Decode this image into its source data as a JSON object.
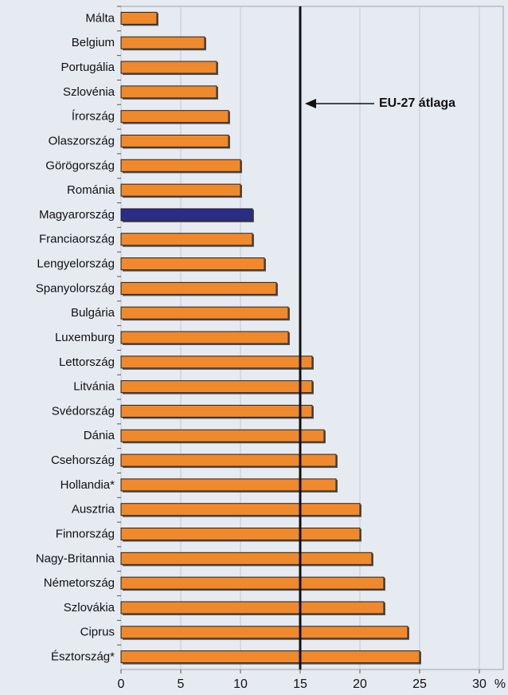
{
  "chart_data": {
    "type": "hbar",
    "categories": [
      "Málta",
      "Belgium",
      "Portugália",
      "Szlovénia",
      "Írország",
      "Olaszország",
      "Görögország",
      "Románia",
      "Magyarország",
      "Franciaország",
      "Lengyelország",
      "Spanyolország",
      "Bulgária",
      "Luxemburg",
      "Lettország",
      "Litvánia",
      "Svédország",
      "Dánia",
      "Csehország",
      "Hollandia*",
      "Ausztria",
      "Finnország",
      "Nagy-Britannia",
      "Németország",
      "Szlovákia",
      "Ciprus",
      "Észtország*"
    ],
    "values": [
      3,
      7,
      8,
      8,
      9,
      9,
      10,
      10,
      11,
      11,
      12,
      13,
      14,
      14,
      16,
      16,
      16,
      17,
      18,
      18,
      20,
      20,
      21,
      22,
      22,
      24,
      25
    ],
    "colors": [
      "#f0892c",
      "#f0892c",
      "#f0892c",
      "#f0892c",
      "#f0892c",
      "#f0892c",
      "#f0892c",
      "#f0892c",
      "#2a2c88",
      "#f0892c",
      "#f0892c",
      "#f0892c",
      "#f0892c",
      "#f0892c",
      "#f0892c",
      "#f0892c",
      "#f0892c",
      "#f0892c",
      "#f0892c",
      "#f0892c",
      "#f0892c",
      "#f0892c",
      "#f0892c",
      "#f0892c",
      "#f0892c",
      "#f0892c",
      "#f0892c"
    ],
    "xlim": [
      0,
      32
    ],
    "xticks": [
      0,
      5,
      10,
      15,
      20,
      25,
      30
    ],
    "xlabel": "%",
    "grid": true,
    "reference_line": {
      "value": 15,
      "label": "EU-27 átlaga"
    }
  }
}
